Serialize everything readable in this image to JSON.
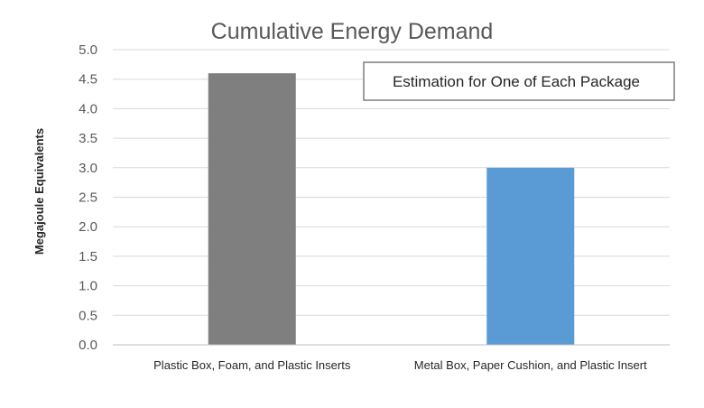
{
  "chart_data": {
    "type": "bar",
    "title": "Cumulative Energy Demand",
    "annotation": "Estimation for One of Each Package",
    "xlabel": "",
    "ylabel": "Megajoule Equivalents",
    "categories": [
      "Plastic Box, Foam, and Plastic Inserts",
      "Metal Box, Paper Cushion, and Plastic Insert"
    ],
    "values": [
      4.6,
      3.0
    ],
    "bar_colors": [
      "#7f7f7f",
      "#5b9bd5"
    ],
    "ylim": [
      0,
      5.0
    ],
    "yticks": [
      "0.0",
      "0.5",
      "1.0",
      "1.5",
      "2.0",
      "2.5",
      "3.0",
      "3.5",
      "4.0",
      "4.5",
      "5.0"
    ],
    "grid": true,
    "legend": "none"
  }
}
